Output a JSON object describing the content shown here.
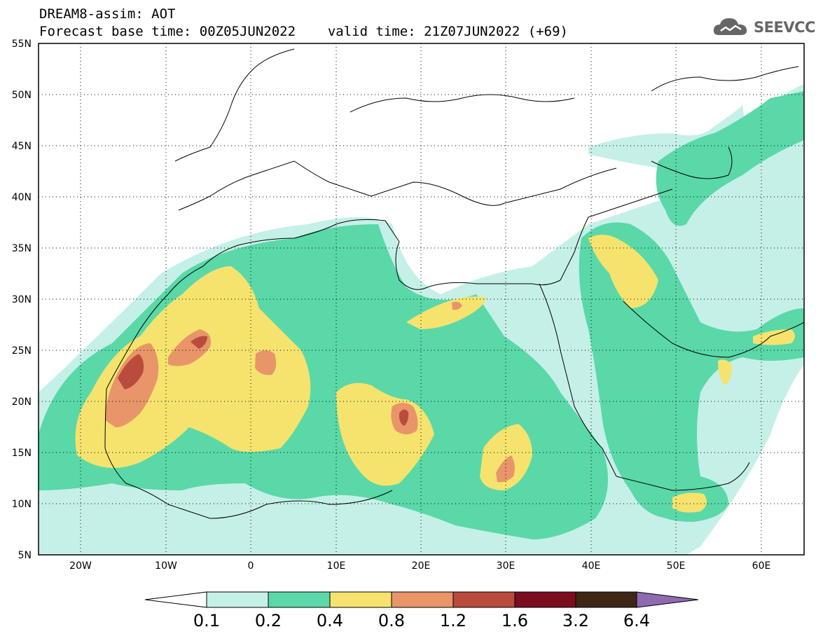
{
  "header": {
    "model_line": "DREAM8-assim: AOT",
    "base_time_line": "Forecast base time: 00Z05JUN2022",
    "valid_time_line": "valid time: 21Z07JUN2022 (+69)"
  },
  "logo": {
    "text": "SEEVCCC",
    "icon": "cloud-icon"
  },
  "map": {
    "extent": {
      "lon_min": -25,
      "lon_max": 65,
      "lat_min": 5,
      "lat_max": 55
    },
    "lat_labels": [
      "55N",
      "50N",
      "45N",
      "40N",
      "35N",
      "30N",
      "25N",
      "20N",
      "15N",
      "10N",
      "5N"
    ],
    "lon_labels": [
      "20W",
      "10W",
      "0",
      "10E",
      "20E",
      "30E",
      "40E",
      "50E",
      "60E"
    ]
  },
  "colorbar": {
    "labels": [
      "0.1",
      "0.2",
      "0.4",
      "0.8",
      "1.2",
      "1.6",
      "3.2",
      "6.4"
    ],
    "colors": [
      "#ffffff",
      "#c5f0e8",
      "#5ad8a8",
      "#f5e36e",
      "#e8956a",
      "#b94c3d",
      "#7a0d1e",
      "#3e2717",
      "#8e6bb0"
    ]
  }
}
